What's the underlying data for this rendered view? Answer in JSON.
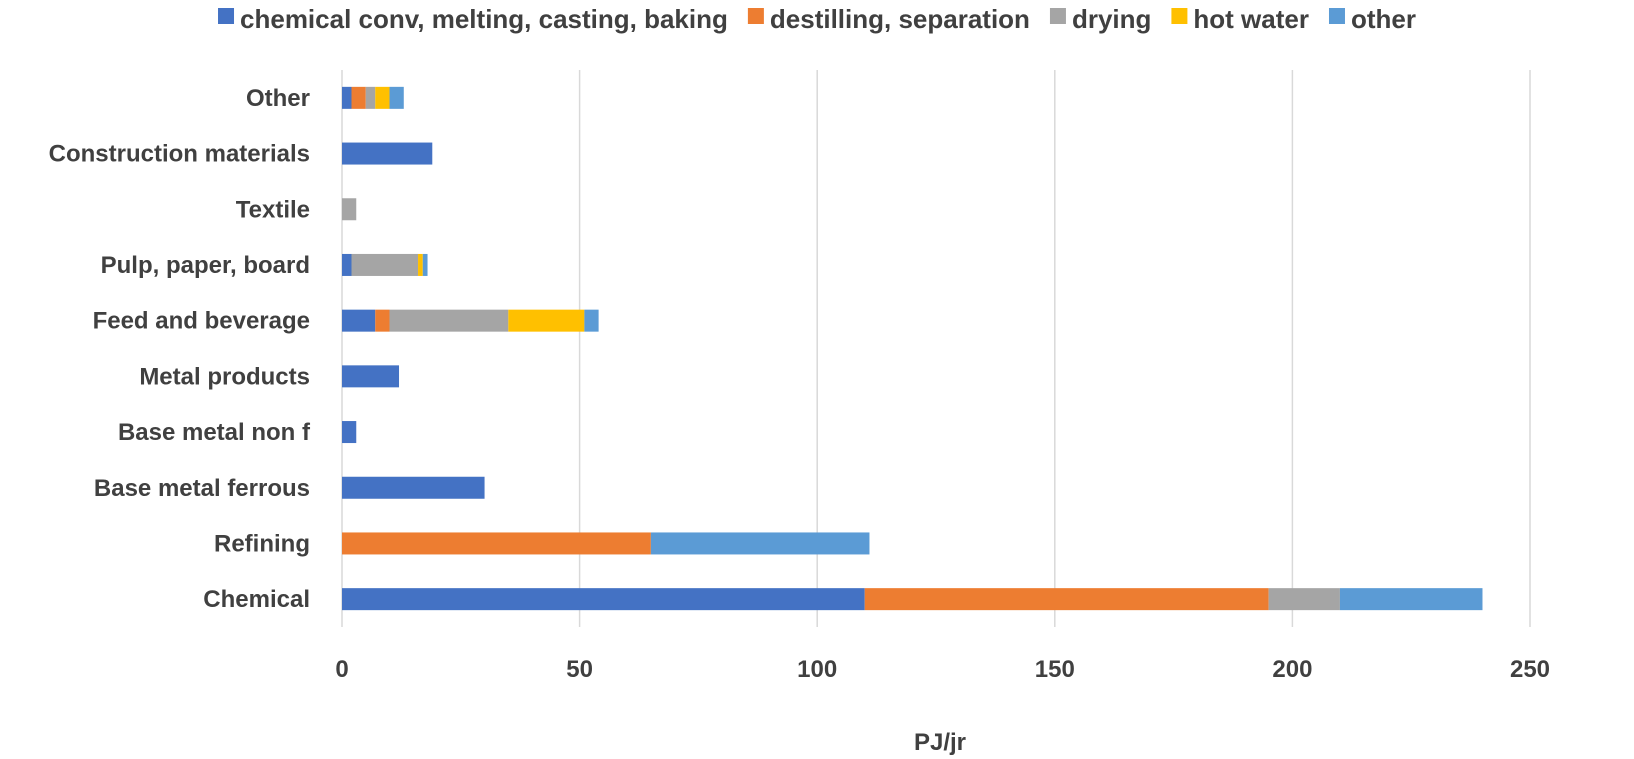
{
  "chart_data": {
    "type": "bar",
    "orientation": "horizontal",
    "stacked": true,
    "title": "",
    "xlabel": "PJ/jr",
    "ylabel": "",
    "xlim": [
      0,
      250
    ],
    "xticks": [
      0,
      50,
      100,
      150,
      200,
      250
    ],
    "grid": true,
    "legend_position": "top",
    "categories": [
      "Chemical",
      "Refining",
      "Base metal ferrous",
      "Base metal non f",
      "Metal products",
      "Feed and beverage",
      "Pulp, paper, board",
      "Textile",
      "Construction materials",
      "Other"
    ],
    "series": [
      {
        "name": "chemical conv,  melting,  casting, baking",
        "color": "#4472c4",
        "values": [
          110,
          0,
          30,
          3,
          12,
          7,
          2,
          0,
          19,
          2
        ]
      },
      {
        "name": "destilling, separation",
        "color": "#ed7d31",
        "values": [
          85,
          65,
          0,
          0,
          0,
          3,
          0,
          0,
          0,
          3
        ]
      },
      {
        "name": "drying",
        "color": "#a5a5a5",
        "values": [
          15,
          0,
          0,
          0,
          0,
          25,
          14,
          3,
          0,
          2
        ]
      },
      {
        "name": "hot water",
        "color": "#ffc000",
        "values": [
          0,
          0,
          0,
          0,
          0,
          16,
          1,
          0,
          0,
          3
        ]
      },
      {
        "name": "other",
        "color": "#5b9bd5",
        "values": [
          30,
          46,
          0,
          0,
          0,
          3,
          1,
          0,
          0,
          3
        ]
      }
    ]
  }
}
